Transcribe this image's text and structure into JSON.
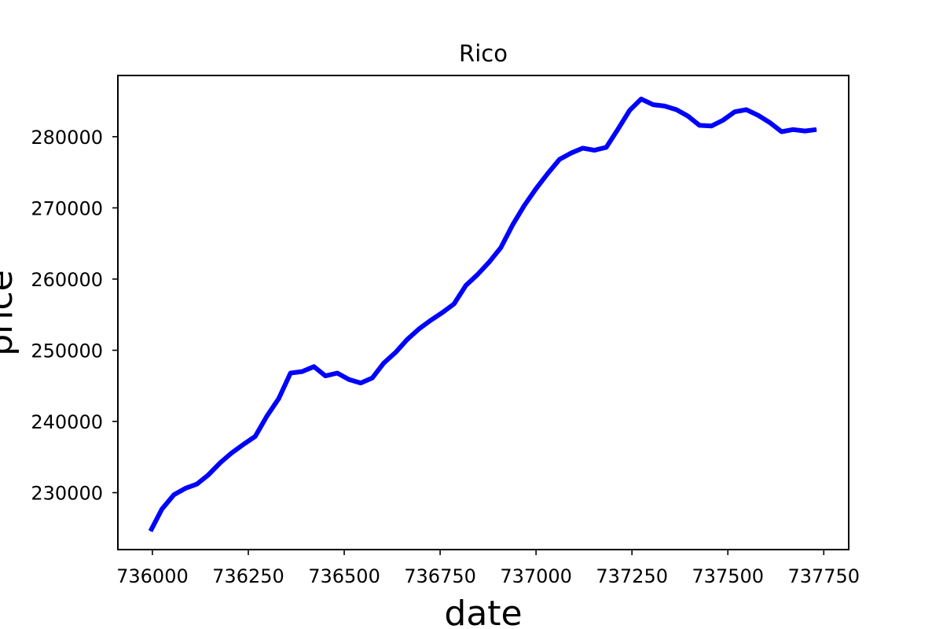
{
  "chart_data": {
    "type": "line",
    "title": "Rico",
    "xlabel": "date",
    "ylabel": "price",
    "xlim": [
      735910,
      737815
    ],
    "ylim": [
      222000,
      288600
    ],
    "xticks": [
      736000,
      736250,
      736500,
      736750,
      737000,
      737250,
      737500,
      737750
    ],
    "xtick_labels": [
      "736000",
      "736250",
      "736500",
      "736750",
      "737000",
      "737250",
      "737500",
      "737750"
    ],
    "yticks": [
      230000,
      240000,
      250000,
      260000,
      270000,
      280000
    ],
    "ytick_labels": [
      "230000",
      "240000",
      "250000",
      "260000",
      "270000",
      "280000"
    ],
    "grid": false,
    "line_color": "#0000ff",
    "series": [
      {
        "x": [
          735995,
          736025,
          736056,
          736086,
          736116,
          736146,
          736177,
          736207,
          736238,
          736268,
          736299,
          736329,
          736360,
          736390,
          736421,
          736451,
          736482,
          736512,
          736543,
          736573,
          736603,
          736634,
          736664,
          736695,
          736725,
          736756,
          736786,
          736817,
          736847,
          736878,
          736908,
          736939,
          736969,
          737000,
          737030,
          737061,
          737091,
          737122,
          737152,
          737183,
          737213,
          737244,
          737274,
          737305,
          737335,
          737366,
          737396,
          737426,
          737457,
          737487,
          737518,
          737548,
          737579,
          737609,
          737640,
          737670,
          737701,
          737731
        ],
        "y": [
          224600,
          227700,
          229700,
          230600,
          231200,
          232500,
          234200,
          235600,
          236800,
          237900,
          240800,
          243200,
          246800,
          247000,
          247700,
          246400,
          246800,
          245900,
          245400,
          246100,
          248200,
          249700,
          251500,
          253000,
          254200,
          255300,
          256500,
          259100,
          260600,
          262400,
          264400,
          267600,
          270300,
          272700,
          274800,
          276800,
          277700,
          278400,
          278100,
          278500,
          281000,
          283700,
          285300,
          284500,
          284300,
          283800,
          282900,
          281600,
          281500,
          282300,
          283500,
          283800,
          283000,
          282000,
          280700,
          281000,
          280800,
          281000
        ]
      }
    ]
  }
}
